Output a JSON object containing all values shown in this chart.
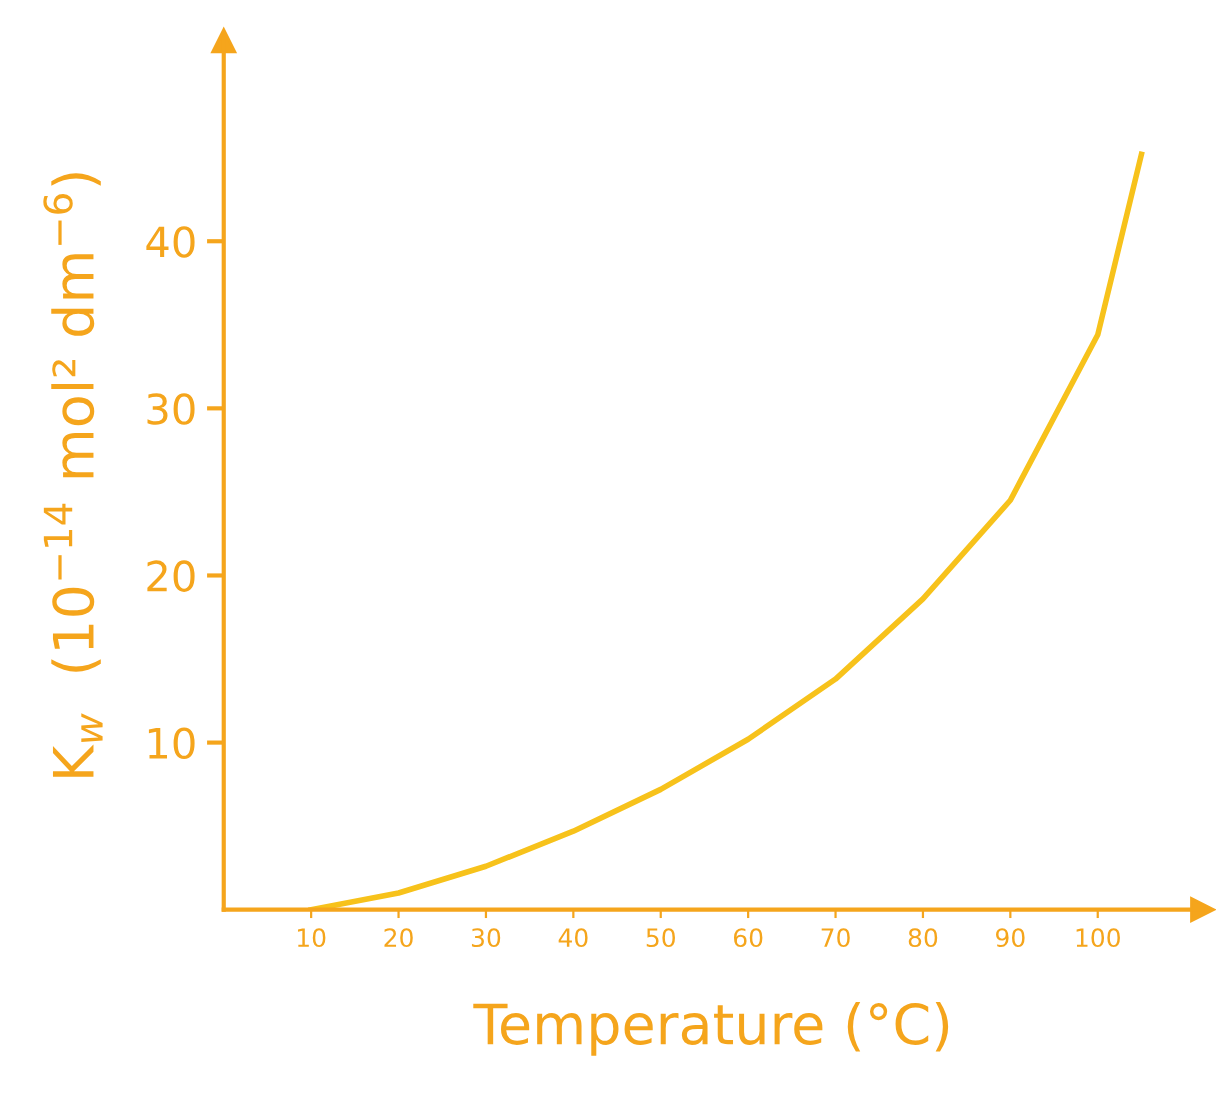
{
  "chart_data": {
    "type": "line",
    "xlabel": "Temperature (°C)",
    "ylabel": "K$_{w}$  (10$^{−14}$ mol² dm$^{−6}$)",
    "x": [
      10,
      20,
      30,
      40,
      50,
      60,
      70,
      80,
      90,
      100,
      105
    ],
    "series": [
      {
        "color": "#f7c21b",
        "values": [
          0,
          1,
          2.6,
          4.7,
          7.2,
          10.2,
          13.8,
          18.6,
          24.5,
          34.4,
          45.2
        ]
      }
    ],
    "xlim": [
      0,
      112
    ],
    "ylim": [
      0,
      52
    ],
    "xticks": [
      10,
      20,
      30,
      40,
      50,
      60,
      70,
      80,
      90,
      100
    ],
    "yticks": [
      10,
      20,
      30,
      40
    ],
    "grid": false,
    "legend": false,
    "marker": "none",
    "line_style": "solid"
  }
}
